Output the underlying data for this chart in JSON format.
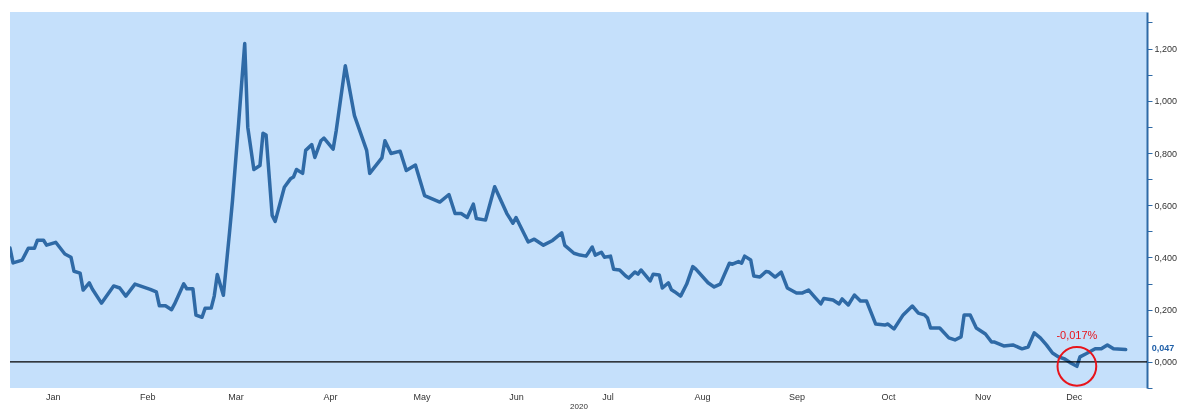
{
  "chart_data": {
    "type": "line",
    "xlabel": "2020",
    "x": [
      "2020-01-01",
      "2020-01-02",
      "2020-01-05",
      "2020-01-07",
      "2020-01-09",
      "2020-01-10",
      "2020-01-12",
      "2020-01-13",
      "2020-01-16",
      "2020-01-19",
      "2020-01-21",
      "2020-01-22",
      "2020-01-24",
      "2020-01-25",
      "2020-01-27",
      "2020-01-28",
      "2020-01-31",
      "2020-02-04",
      "2020-02-06",
      "2020-02-08",
      "2020-02-11",
      "2020-02-16",
      "2020-02-18",
      "2020-02-19",
      "2020-02-21",
      "2020-02-23",
      "2020-02-24",
      "2020-02-27",
      "2020-02-28",
      "2020-03-01",
      "2020-03-02",
      "2020-03-04",
      "2020-03-05",
      "2020-03-07",
      "2020-03-08",
      "2020-03-09",
      "2020-03-11",
      "2020-03-13",
      "2020-03-14",
      "2020-03-16",
      "2020-03-17",
      "2020-03-18",
      "2020-03-19",
      "2020-03-21",
      "2020-03-23",
      "2020-03-24",
      "2020-03-25",
      "2020-03-27",
      "2020-03-28",
      "2020-03-31",
      "2020-04-02",
      "2020-04-03",
      "2020-04-04",
      "2020-04-06",
      "2020-04-07",
      "2020-04-09",
      "2020-04-10",
      "2020-04-12",
      "2020-04-13",
      "2020-04-16",
      "2020-04-17",
      "2020-04-20",
      "2020-04-23",
      "2020-04-27",
      "2020-04-28",
      "2020-05-02",
      "2020-05-03",
      "2020-05-05",
      "2020-05-08",
      "2020-05-10",
      "2020-05-13",
      "2020-05-16",
      "2020-05-21",
      "2020-05-24",
      "2020-05-26",
      "2020-05-28",
      "2020-05-30",
      "2020-06-01",
      "2020-06-02",
      "2020-06-05",
      "2020-06-08",
      "2020-06-12",
      "2020-06-14",
      "2020-06-15",
      "2020-06-19",
      "2020-06-21",
      "2020-06-24",
      "2020-06-27",
      "2020-06-30",
      "2020-07-01",
      "2020-07-04",
      "2020-07-06",
      "2020-07-08",
      "2020-07-10",
      "2020-07-11",
      "2020-07-13",
      "2020-07-14",
      "2020-07-16",
      "2020-07-17",
      "2020-07-19",
      "2020-07-21",
      "2020-07-22",
      "2020-07-24",
      "2020-07-25",
      "2020-07-26",
      "2020-07-29",
      "2020-07-30",
      "2020-08-01",
      "2020-08-02",
      "2020-08-04",
      "2020-08-05",
      "2020-08-06",
      "2020-08-08",
      "2020-08-10",
      "2020-08-12",
      "2020-08-13",
      "2020-08-17",
      "2020-08-19",
      "2020-08-21",
      "2020-08-24",
      "2020-08-25",
      "2020-08-27",
      "2020-08-28",
      "2020-08-29",
      "2020-08-31",
      "2020-09-01",
      "2020-09-03",
      "2020-09-05",
      "2020-09-06",
      "2020-09-08",
      "2020-09-10",
      "2020-09-12",
      "2020-09-15",
      "2020-09-17",
      "2020-09-19",
      "2020-09-21",
      "2020-09-23",
      "2020-09-24",
      "2020-09-27",
      "2020-09-29",
      "2020-09-30",
      "2020-10-02",
      "2020-10-04",
      "2020-10-06",
      "2020-10-08",
      "2020-10-11",
      "2020-10-14",
      "2020-10-15",
      "2020-10-17",
      "2020-10-20",
      "2020-10-23",
      "2020-10-25",
      "2020-10-27",
      "2020-10-28",
      "2020-10-29",
      "2020-11-01",
      "2020-11-04",
      "2020-11-06",
      "2020-11-08",
      "2020-11-09",
      "2020-11-11",
      "2020-11-13",
      "2020-11-16",
      "2020-11-18",
      "2020-11-19",
      "2020-11-22",
      "2020-11-25",
      "2020-11-28",
      "2020-11-30",
      "2020-12-02",
      "2020-12-04",
      "2020-12-06",
      "2020-12-08",
      "2020-12-10",
      "2020-12-12",
      "2020-12-14",
      "2020-12-16",
      "2020-12-17",
      "2020-12-19",
      "2020-12-22",
      "2020-12-24",
      "2020-12-26",
      "2020-12-28",
      "2021-01-01"
    ],
    "series": [
      {
        "color": "#2f6aa6",
        "values": [
          0.436,
          0.379,
          0.39,
          0.435,
          0.435,
          0.466,
          0.466,
          0.447,
          0.458,
          0.413,
          0.401,
          0.347,
          0.34,
          0.275,
          0.303,
          0.279,
          0.225,
          0.291,
          0.283,
          0.252,
          0.298,
          0.278,
          0.268,
          0.215,
          0.215,
          0.2,
          0.222,
          0.299,
          0.28,
          0.28,
          0.179,
          0.171,
          0.205,
          0.206,
          0.252,
          0.335,
          0.255,
          0.494,
          0.619,
          0.913,
          1.068,
          1.219,
          0.899,
          0.737,
          0.752,
          0.876,
          0.869,
          0.561,
          0.538,
          0.669,
          0.701,
          0.708,
          0.737,
          0.722,
          0.81,
          0.832,
          0.783,
          0.847,
          0.857,
          0.815,
          0.884,
          1.134,
          0.943,
          0.81,
          0.722,
          0.781,
          0.847,
          0.798,
          0.807,
          0.733,
          0.754,
          0.637,
          0.612,
          0.641,
          0.568,
          0.568,
          0.553,
          0.604,
          0.549,
          0.543,
          0.671,
          0.568,
          0.531,
          0.553,
          0.459,
          0.47,
          0.447,
          0.465,
          0.494,
          0.446,
          0.416,
          0.409,
          0.405,
          0.44,
          0.409,
          0.42,
          0.401,
          0.405,
          0.355,
          0.352,
          0.329,
          0.321,
          0.344,
          0.336,
          0.352,
          0.31,
          0.336,
          0.333,
          0.283,
          0.303,
          0.276,
          0.269,
          0.252,
          0.298,
          0.365,
          0.355,
          0.303,
          0.287,
          0.298,
          0.378,
          0.374,
          0.384,
          0.378,
          0.405,
          0.39,
          0.329,
          0.325,
          0.346,
          0.344,
          0.325,
          0.344,
          0.283,
          0.264,
          0.264,
          0.275,
          0.248,
          0.222,
          0.243,
          0.237,
          0.222,
          0.241,
          0.218,
          0.256,
          0.233,
          0.233,
          0.145,
          0.141,
          0.145,
          0.126,
          0.18,
          0.214,
          0.187,
          0.18,
          0.168,
          0.13,
          0.13,
          0.092,
          0.084,
          0.096,
          0.18,
          0.18,
          0.13,
          0.107,
          0.076,
          0.076,
          0.061,
          0.065,
          0.05,
          0.057,
          0.111,
          0.092,
          0.065,
          0.034,
          0.019,
          0.011,
          -0.004,
          -0.017,
          0.019,
          0.031,
          0.05,
          0.05,
          0.065,
          0.05,
          0.047
        ]
      }
    ],
    "xlim": [
      "2020-01-01",
      "2021-01-08"
    ],
    "xticks": [
      {
        "value": "2020-01-15",
        "label": "Jan"
      },
      {
        "value": "2020-02-15",
        "label": "Feb"
      },
      {
        "value": "2020-03-15",
        "label": "Mar"
      },
      {
        "value": "2020-04-15",
        "label": "Apr"
      },
      {
        "value": "2020-05-15",
        "label": "May"
      },
      {
        "value": "2020-06-15",
        "label": "Jun"
      },
      {
        "value": "2020-07-15",
        "label": "Jul"
      },
      {
        "value": "2020-08-15",
        "label": "Aug"
      },
      {
        "value": "2020-09-15",
        "label": "Sep"
      },
      {
        "value": "2020-10-15",
        "label": "Oct"
      },
      {
        "value": "2020-11-15",
        "label": "Nov"
      },
      {
        "value": "2020-12-15",
        "label": "Dec"
      }
    ],
    "ylim": [
      -0.1,
      1.34
    ],
    "yticks": [
      {
        "value": -0.1,
        "label": null
      },
      {
        "value": 0,
        "label": "0,000"
      },
      {
        "value": 0.1,
        "label": null
      },
      {
        "value": 0.2,
        "label": "0,200"
      },
      {
        "value": 0.3,
        "label": null
      },
      {
        "value": 0.4,
        "label": "0,400"
      },
      {
        "value": 0.5,
        "label": null
      },
      {
        "value": 0.6,
        "label": "0,600"
      },
      {
        "value": 0.7,
        "label": null
      },
      {
        "value": 0.8,
        "label": "0,800"
      },
      {
        "value": 0.9,
        "label": null
      },
      {
        "value": 1.0,
        "label": "1,000"
      },
      {
        "value": 1.1,
        "label": null
      },
      {
        "value": 1.2,
        "label": "1,200"
      },
      {
        "value": 1.3,
        "label": null
      }
    ],
    "ref_lines": [
      {
        "axis": "y",
        "value": 0,
        "color": "#000000"
      }
    ],
    "annotations": [
      {
        "text": "-0,017%",
        "x": "2020-12-16",
        "y": -0.017
      },
      {
        "text": "0,047",
        "x": "2021-01-01",
        "y": 0.047
      }
    ]
  }
}
